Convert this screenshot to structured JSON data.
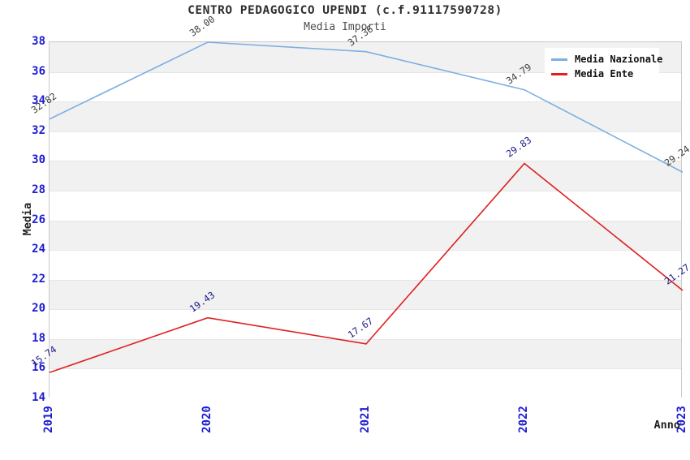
{
  "chart_data": {
    "type": "line",
    "title": "CENTRO PEDAGOGICO UPENDI (c.f.91117590728)",
    "subtitle": "Media Importi",
    "xlabel": "Anno",
    "ylabel": "Media",
    "categories": [
      "2019",
      "2020",
      "2021",
      "2022",
      "2023"
    ],
    "series": [
      {
        "name": "Media Nazionale",
        "color": "#7cafe2",
        "label_color": "#3c3c3c",
        "values": [
          32.82,
          38.0,
          37.36,
          34.79,
          29.24
        ],
        "labels": [
          "32.82",
          "38.00",
          "37.36",
          "34.79",
          "29.24"
        ]
      },
      {
        "name": "Media Ente",
        "color": "#df2020",
        "label_color": "#1a1a87",
        "values": [
          15.74,
          19.43,
          17.67,
          29.83,
          21.27
        ],
        "labels": [
          "15.74",
          "19.43",
          "17.67",
          "29.83",
          "21.27"
        ]
      }
    ],
    "ylim": [
      14,
      38
    ],
    "ytick_step": 2,
    "yticks": [
      38,
      36,
      34,
      32,
      30,
      28,
      26,
      24,
      22,
      20,
      18,
      16,
      14
    ],
    "grid": "horizontal-bands",
    "band_colors": [
      "#f1f1f1",
      "#ffffff"
    ],
    "tick_label_color": "#1c1cd2",
    "legend_position": "top-right",
    "legend_entries": [
      "Media Nazionale",
      "Media Ente"
    ]
  }
}
